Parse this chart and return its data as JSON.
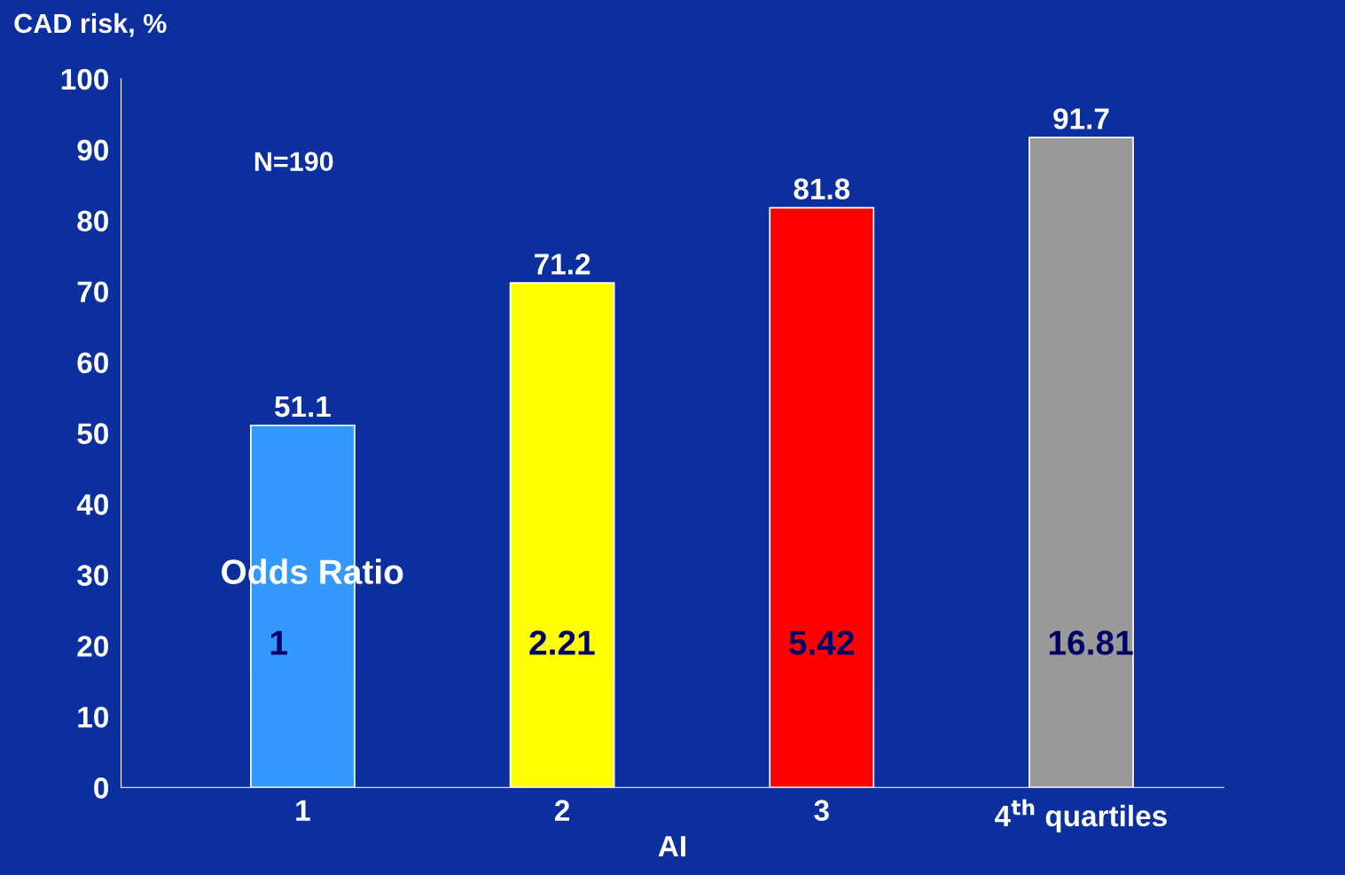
{
  "chart_data": {
    "type": "bar",
    "ylabel": "CAD risk, %",
    "xlabel": "AI",
    "categories": [
      "1",
      "2",
      "3",
      "4$^{th}$ quartiles"
    ],
    "values": [
      51.1,
      71.2,
      81.8,
      91.7
    ],
    "colors": [
      "#3399ff",
      "#ffff00",
      "#ff0000",
      "#999999"
    ],
    "ylim": [
      0,
      100
    ],
    "yticks": [
      0,
      10,
      20,
      30,
      40,
      50,
      60,
      70,
      80,
      90,
      100
    ],
    "data_labels": true,
    "grid": false,
    "legend": false,
    "annotations": [
      "N=190",
      "Odds Ratio",
      "1",
      "2.21",
      "5.42",
      "16.81"
    ]
  }
}
